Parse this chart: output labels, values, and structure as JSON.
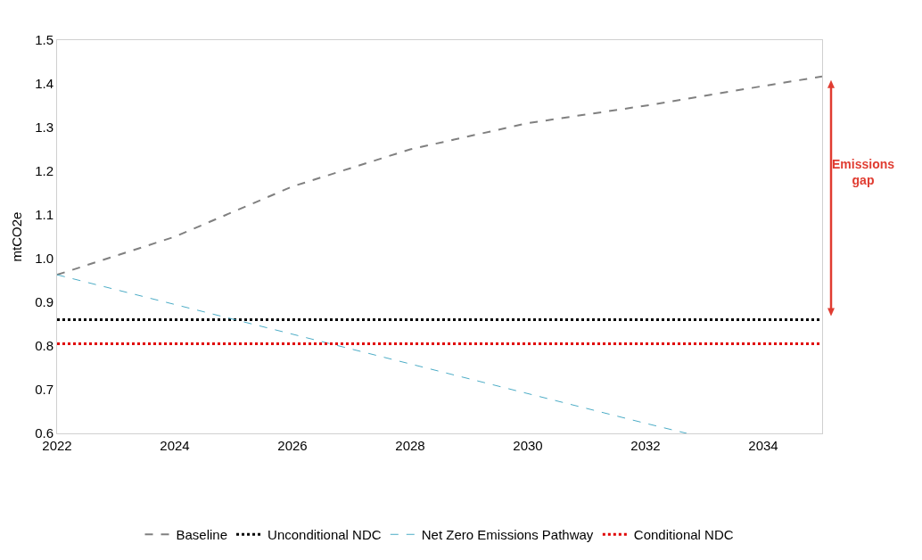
{
  "chart_data": {
    "type": "line",
    "ylabel": "mtCO2e",
    "xlim": [
      2022,
      2035
    ],
    "xticks": [
      2022,
      2024,
      2026,
      2028,
      2030,
      2032,
      2034
    ],
    "ylim": [
      0.6,
      1.5
    ],
    "yticks": [
      0.6,
      0.7,
      0.8,
      0.9,
      {
        "value": 1,
        "label": "1.0"
      },
      1.1,
      1.2,
      1.3,
      1.4,
      1.5
    ],
    "grid": false,
    "legend": "bottom",
    "marker": "none",
    "annotations": [
      "Emissions gap"
    ],
    "series": [
      {
        "name": "Baseline",
        "color": "#808080",
        "line_style": "dashed",
        "x": [
          2022,
          2024,
          2026,
          2028,
          2029,
          2030,
          2032,
          2034,
          2035
        ],
        "values": [
          0.963,
          1.05,
          1.165,
          1.25,
          1.28,
          1.31,
          1.35,
          1.395,
          1.417
        ]
      },
      {
        "name": "Unconditional NDC",
        "color": "#000000",
        "line_style": "dotted",
        "x": [
          2022,
          2035
        ],
        "values": [
          0.86,
          0.86
        ]
      },
      {
        "name": "Net Zero Emissions Pathway",
        "color": "#4bacc6",
        "line_style": "dashed",
        "x": [
          2022,
          2024,
          2026,
          2028,
          2030,
          2032,
          2032.7
        ],
        "values": [
          0.963,
          0.895,
          0.827,
          0.759,
          0.691,
          0.623,
          0.6
        ]
      },
      {
        "name": "Conditional NDC",
        "color": "#e00000",
        "line_style": "dotted",
        "x": [
          2022,
          2035
        ],
        "values": [
          0.805,
          0.805
        ]
      }
    ]
  }
}
